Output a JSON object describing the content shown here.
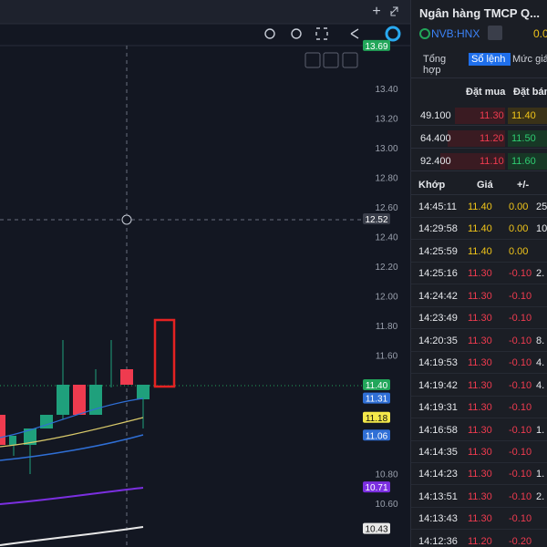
{
  "chart_panel": {
    "price_axis": [
      "13.40",
      "13.20",
      "13.00",
      "12.80",
      "12.60",
      "12.40",
      "12.20",
      "12.00",
      "11.80",
      "11.60",
      "10.80",
      "10.60"
    ],
    "badges": [
      {
        "label": "13.69",
        "color": "#22a65a",
        "text_color": "#ffffff"
      },
      {
        "label": "12.52",
        "color": "#3a3e4a",
        "text_color": "#ffffff"
      },
      {
        "label": "11.40",
        "color": "#22a65a",
        "text_color": "#ffffff"
      },
      {
        "label": "11.31",
        "color": "#2f6fd6",
        "text_color": "#ffffff"
      },
      {
        "label": "11.18",
        "color": "#f5e94a",
        "text_color": "#111111"
      },
      {
        "label": "11.06",
        "color": "#2f6fd6",
        "text_color": "#ffffff"
      },
      {
        "label": "10.71",
        "color": "#7b2fe0",
        "text_color": "#ffffff"
      },
      {
        "label": "10.43",
        "color": "#e8e8e8",
        "text_color": "#111111"
      }
    ]
  },
  "panel": {
    "title": "Ngân hàng TMCP Q...",
    "symbol": "NVB:HNX",
    "change": "0.0",
    "tabs": [
      "Tổng hợp",
      "Sổ lệnh",
      "Mức giá"
    ],
    "book_headers": [
      "Đặt mua",
      "Đặt bán"
    ],
    "book": [
      {
        "volume": "49.100",
        "bid": "11.30",
        "ask": "11.40",
        "ask_color": "#f0c419"
      },
      {
        "volume": "64.400",
        "bid": "11.20",
        "ask": "11.50",
        "ask_color": "#2ecc71"
      },
      {
        "volume": "92.400",
        "bid": "11.10",
        "ask": "11.60",
        "ask_color": "#2ecc71"
      }
    ],
    "trade_headers": [
      "Khớp",
      "Giá",
      "+/-"
    ],
    "trades": [
      [
        "14:45:11",
        "11.40",
        "0.00",
        "25."
      ],
      [
        "14:29:58",
        "11.40",
        "0.00",
        "10."
      ],
      [
        "14:25:59",
        "11.40",
        "0.00"
      ],
      [
        "14:25:16",
        "11.30",
        "-0.10",
        "2."
      ],
      [
        "14:24:42",
        "11.30",
        "-0.10"
      ],
      [
        "14:23:49",
        "11.30",
        "-0.10"
      ],
      [
        "14:20:35",
        "11.30",
        "-0.10",
        "8."
      ],
      [
        "14:19:53",
        "11.30",
        "-0.10",
        "4."
      ],
      [
        "14:19:42",
        "11.30",
        "-0.10",
        "4."
      ],
      [
        "14:19:31",
        "11.30",
        "-0.10"
      ],
      [
        "14:16:58",
        "11.30",
        "-0.10",
        "1."
      ],
      [
        "14:14:35",
        "11.30",
        "-0.10"
      ],
      [
        "14:14:23",
        "11.30",
        "-0.10",
        "1."
      ],
      [
        "14:13:51",
        "11.30",
        "-0.10",
        "2."
      ],
      [
        "14:13:43",
        "11.30",
        "-0.10"
      ],
      [
        "14:12:36",
        "11.20",
        "-0.20"
      ]
    ]
  }
}
